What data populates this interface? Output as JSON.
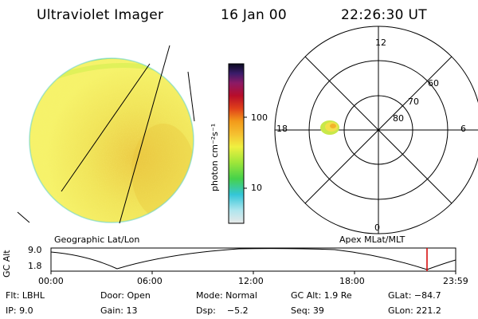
{
  "header": {
    "instrument": "Ultraviolet Imager",
    "date": "16 Jan 00",
    "time": "22:26:30 UT"
  },
  "colorbar": {
    "unit_label": "photon cm⁻²s⁻¹",
    "ticks": [
      "100",
      "10"
    ]
  },
  "geo_panel": {
    "caption": "Geographic Lat/Lon"
  },
  "polar_panel": {
    "caption": "Apex MLat/MLT",
    "mlt_labels": [
      "12",
      "18",
      "6",
      "0"
    ],
    "lat_labels": [
      "60",
      "70",
      "80"
    ]
  },
  "orbit_plot": {
    "ylabel": "GC Alt",
    "y_ticks": [
      "9.0",
      "1.8"
    ],
    "x_ticks": [
      "00:00",
      "06:00",
      "12:00",
      "18:00",
      "23:59"
    ],
    "current_time_marker_hours": 22.44
  },
  "info": {
    "flt": "Flt: LBHL",
    "door": "Door: Open",
    "mode": "Mode: Normal",
    "gc_alt": "GC Alt: 1.9 Re",
    "glat": "GLat: −84.7",
    "ip": "IP: 9.0",
    "gain": "Gain: 13",
    "dsp": "Dsp:    −5.2",
    "seq": "Seq: 39",
    "glon": "GLon: 221.2"
  },
  "colors": {
    "disk": "#f2f25a",
    "disk_bright": "#e8c93a",
    "marker": "#d40000"
  }
}
